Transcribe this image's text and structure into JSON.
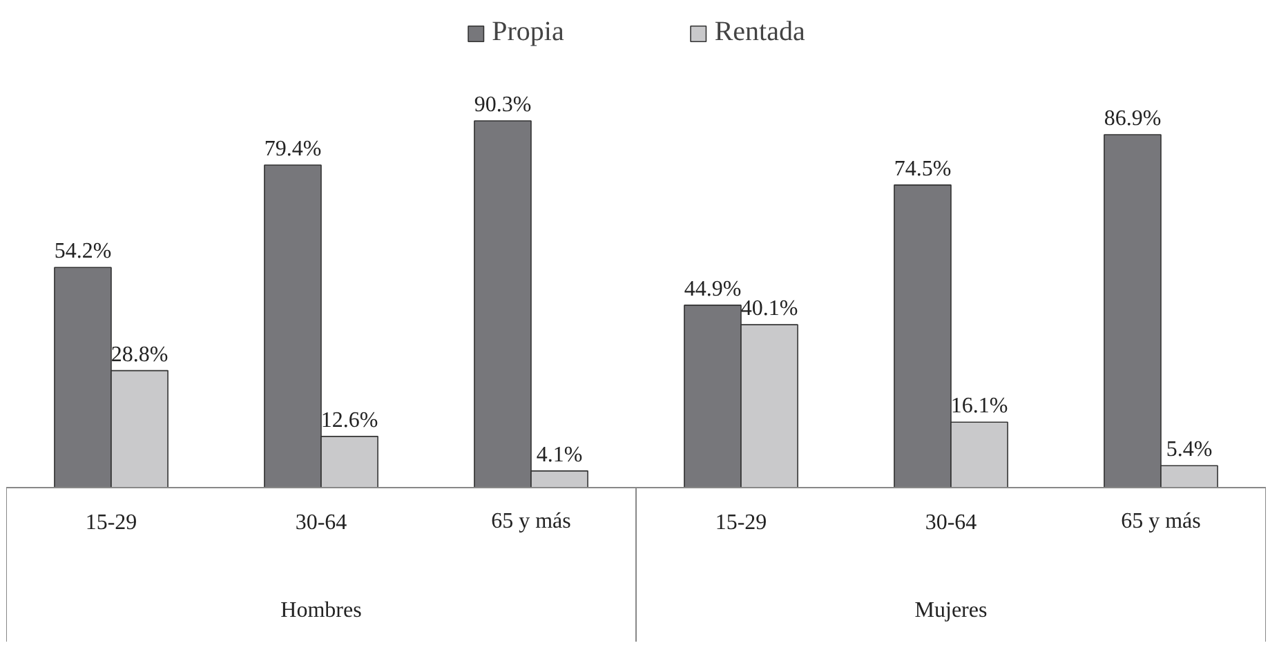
{
  "chart_data": {
    "type": "bar",
    "categories": [
      "15-29",
      "30-64",
      "65 y más",
      "15-29",
      "30-64",
      "65 y más"
    ],
    "series": [
      {
        "name": "Propia",
        "color": "#77777b",
        "values": [
          54.2,
          79.4,
          90.3,
          44.9,
          74.5,
          86.9
        ],
        "value_labels": [
          "54.2%",
          "79.4%",
          "90.3%",
          "44.9%",
          "74.5%",
          "86.9%"
        ]
      },
      {
        "name": "Rentada",
        "color": "#c9c9cb",
        "values": [
          28.8,
          12.6,
          4.1,
          40.1,
          16.1,
          5.4
        ],
        "value_labels": [
          "28.8%",
          "12.6%",
          "4.1%",
          "40.1%",
          "16.1%",
          "5.4%"
        ]
      }
    ],
    "annotations": [
      "Hombres",
      "Mujeres"
    ],
    "legend": "top"
  }
}
